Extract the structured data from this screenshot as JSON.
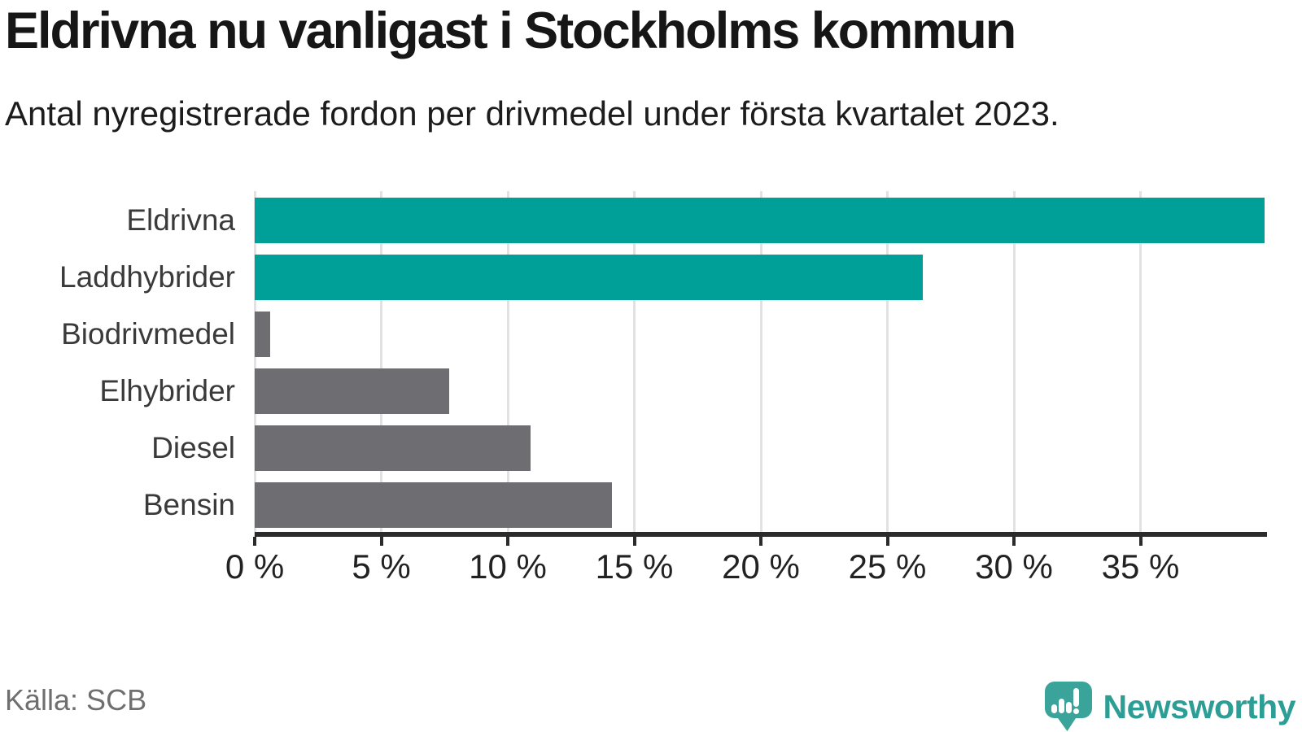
{
  "header": {
    "title": "Eldrivna nu vanligast i Stockholms kommun",
    "subtitle": "Antal nyregistrerade fordon per drivmedel under första kvartalet 2023."
  },
  "chart_data": {
    "type": "bar",
    "orientation": "horizontal",
    "title": "Eldrivna nu vanligast i Stockholms kommun",
    "subtitle": "Antal nyregistrerade fordon per drivmedel under första kvartalet 2023.",
    "categories": [
      "Eldrivna",
      "Laddhybrider",
      "Biodrivmedel",
      "Elhybrider",
      "Diesel",
      "Bensin"
    ],
    "values": [
      39.9,
      26.4,
      0.6,
      7.7,
      10.9,
      14.1
    ],
    "unit": "%",
    "xlim": [
      0,
      40
    ],
    "x_ticks": [
      0,
      5,
      10,
      15,
      20,
      25,
      30,
      35
    ],
    "x_tick_labels": [
      "0 %",
      "5 %",
      "10 %",
      "15 %",
      "20 %",
      "25 %",
      "30 %",
      "35 %"
    ],
    "grid": true,
    "legend": "none",
    "highlight_color": "#00a099",
    "default_color": "#6e6e72",
    "bar_colors": [
      "#00a099",
      "#00a099",
      "#6e6e72",
      "#6e6e72",
      "#6e6e72",
      "#6e6e72"
    ]
  },
  "footer": {
    "source": "Källa: SCB",
    "brand": "Newsworthy",
    "brand_color": "#2d9e96",
    "logo_icon": "speech-bubble-bar-chart-icon"
  }
}
